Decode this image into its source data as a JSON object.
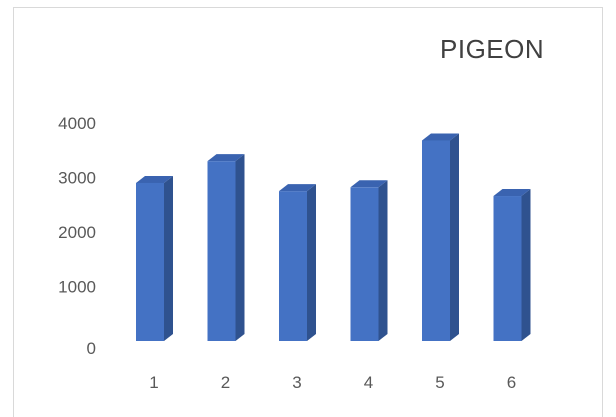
{
  "chart_data": {
    "type": "bar",
    "title": "PIGEON",
    "categories": [
      "1",
      "2",
      "3",
      "4",
      "5",
      "6"
    ],
    "values": [
      2900,
      3300,
      2750,
      2820,
      3680,
      2660
    ],
    "ylim": [
      0,
      4000
    ],
    "yticks": [
      0,
      1000,
      2000,
      3000,
      4000
    ],
    "xlabel": "",
    "ylabel": "",
    "grid": false,
    "legend": "none",
    "style": "3d-column",
    "colors": {
      "front": "#4472c4",
      "side": "#2f528f",
      "top": "#3a63b0"
    }
  }
}
